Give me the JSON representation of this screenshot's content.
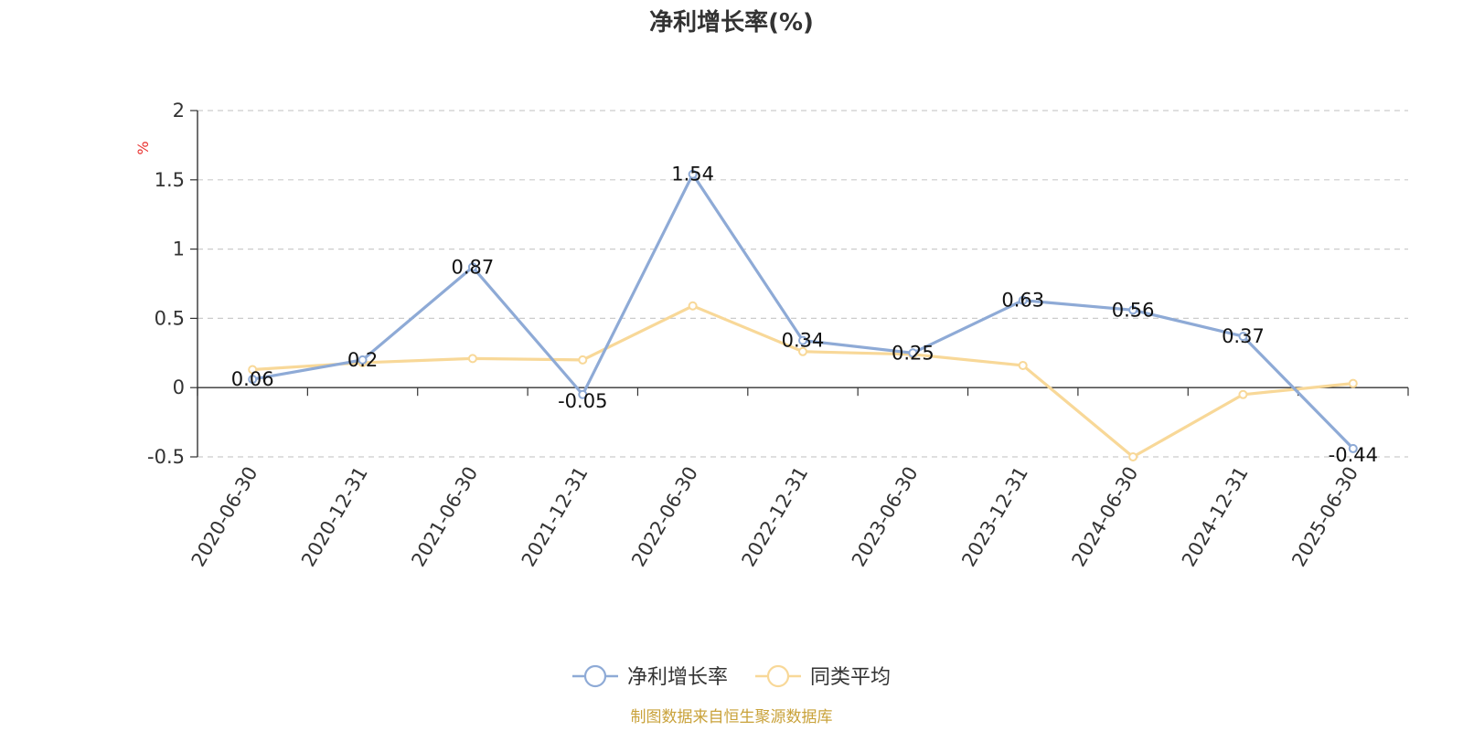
{
  "chart_data": {
    "type": "line",
    "title": "净利增长率(%)",
    "ylabel": "%",
    "categories": [
      "2020-06-30",
      "2020-12-31",
      "2021-06-30",
      "2021-12-31",
      "2022-06-30",
      "2022-12-31",
      "2023-06-30",
      "2023-12-31",
      "2024-06-30",
      "2024-12-31",
      "2025-06-30"
    ],
    "ylim": [
      -0.5,
      2
    ],
    "yticks": [
      "2",
      "1.5",
      "1",
      "0.5",
      "0",
      "-0.5"
    ],
    "grid": true,
    "legend_position": "bottom-center",
    "series": [
      {
        "name": "净利增长率",
        "color": "#8eaad6",
        "values": [
          0.06,
          0.2,
          0.87,
          -0.05,
          1.54,
          0.34,
          0.25,
          0.63,
          0.56,
          0.37,
          -0.44
        ],
        "labels": [
          "0.06",
          "0.2",
          "0.87",
          "-0.05",
          "1.54",
          "0.34",
          "0.25",
          "0.63",
          "0.56",
          "0.37",
          "-0.44"
        ]
      },
      {
        "name": "同类平均",
        "color": "#f8d898",
        "values": [
          0.13,
          0.18,
          0.21,
          0.2,
          0.59,
          0.26,
          0.24,
          0.16,
          -0.5,
          -0.05,
          0.03
        ]
      }
    ]
  },
  "source_text": "制图数据来自恒生聚源数据库",
  "colors": {
    "unit_label": "#e8312f",
    "source_text": "#c9a23a",
    "axis": "#333333",
    "grid": "#cccccc"
  }
}
